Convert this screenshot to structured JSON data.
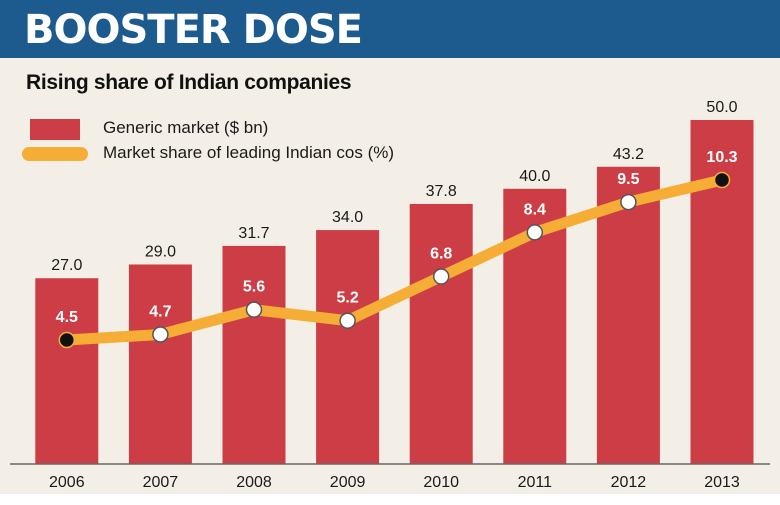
{
  "header": {
    "title": "BOOSTER DOSE"
  },
  "chart_data": {
    "type": "bar",
    "title": "BOOSTER DOSE",
    "subtitle": "Rising share of Indian companies",
    "categories": [
      "2006",
      "2007",
      "2008",
      "2009",
      "2010",
      "2011",
      "2012",
      "2013"
    ],
    "series": [
      {
        "name": "Generic market ($ bn)",
        "type": "bar",
        "values": [
          27.0,
          29.0,
          31.7,
          34.0,
          37.8,
          40.0,
          43.2,
          50.0
        ],
        "labels": [
          "27.0",
          "29.0",
          "31.7",
          "34.0",
          "37.8",
          "40.0",
          "43.2",
          "50.0"
        ],
        "color": "#cd3d45"
      },
      {
        "name": "Market share of leading Indian cos (%)",
        "type": "line",
        "values": [
          4.5,
          4.7,
          5.6,
          5.2,
          6.8,
          8.4,
          9.5,
          10.3
        ],
        "labels": [
          "4.5",
          "4.7",
          "5.6",
          "5.2",
          "6.8",
          "8.4",
          "9.5",
          "10.3"
        ],
        "color": "#f5ad36"
      }
    ],
    "legend_position": "top-left",
    "grid": false
  }
}
